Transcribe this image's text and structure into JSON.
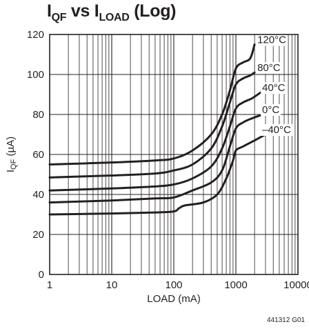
{
  "figure_code": "441312 G01",
  "chart_data": {
    "type": "line",
    "title": {
      "main": "I",
      "sub1": "QF",
      "mid": " vs I",
      "sub2": "LOAD",
      "tail": " (Log)"
    },
    "xlabel": "LOAD (mA)",
    "ylabel": {
      "main": "I",
      "sub": "QF",
      "unit": " (µA)"
    },
    "x_scale": "log",
    "xlim": [
      1,
      10000
    ],
    "ylim": [
      0,
      120
    ],
    "x_ticks": [
      1,
      10,
      100,
      1000,
      10000
    ],
    "x_tick_labels": [
      "1",
      "10",
      "100",
      "1000",
      "10000"
    ],
    "y_ticks": [
      0,
      20,
      40,
      60,
      80,
      100,
      120
    ],
    "y_tick_labels": [
      "0",
      "20",
      "40",
      "60",
      "80",
      "100",
      "120"
    ],
    "grid": true,
    "series": [
      {
        "name": "120°C",
        "x": [
          1,
          10,
          50,
          100,
          200,
          400,
          600,
          800,
          1000,
          1300,
          1700,
          2000
        ],
        "y": [
          55,
          56,
          57,
          58,
          62,
          70,
          80,
          92,
          103,
          106,
          108,
          115
        ]
      },
      {
        "name": "80°C",
        "x": [
          1,
          10,
          50,
          100,
          200,
          400,
          600,
          800,
          1000,
          1300,
          1700,
          2000
        ],
        "y": [
          48.5,
          49.5,
          50.5,
          52,
          55,
          63,
          74,
          86,
          95,
          98,
          99.5,
          101
        ]
      },
      {
        "name": "40°C",
        "x": [
          1,
          10,
          50,
          100,
          200,
          400,
          600,
          800,
          1000,
          1300,
          1800,
          2500
        ],
        "y": [
          42,
          43,
          44,
          45,
          48,
          54,
          63,
          74,
          83,
          86,
          88,
          91
        ]
      },
      {
        "name": "0°C",
        "x": [
          1,
          10,
          50,
          100,
          200,
          400,
          600,
          800,
          1000,
          1300,
          1800,
          2700
        ],
        "y": [
          36,
          37,
          38,
          38.5,
          42,
          46,
          52,
          64,
          73,
          76,
          78,
          80
        ]
      },
      {
        "name": "–40°C",
        "x": [
          1,
          10,
          50,
          100,
          120,
          150,
          300,
          500,
          700,
          900,
          1000,
          1300,
          2000,
          3000
        ],
        "y": [
          30,
          30.5,
          31,
          31.5,
          33,
          34.5,
          36,
          40,
          48,
          57,
          62,
          64,
          67,
          70
        ]
      }
    ]
  }
}
